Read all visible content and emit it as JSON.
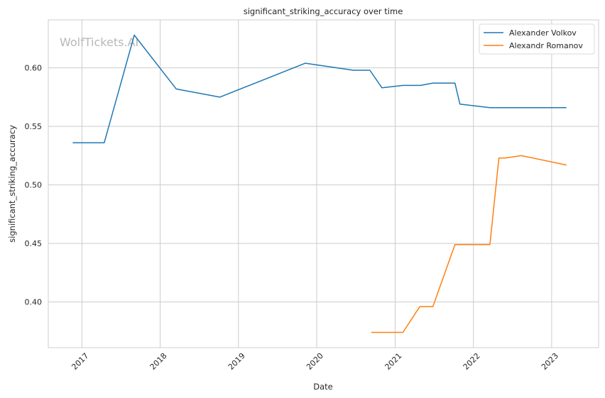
{
  "chart_data": {
    "type": "line",
    "title": "significant_striking_accuracy over time",
    "xlabel": "Date",
    "ylabel": "significant_striking_accuracy",
    "watermark": "WolfTickets.AI",
    "xlim": [
      "2016-07-28",
      "2023-08-08"
    ],
    "ylim": [
      0.361,
      0.641
    ],
    "x_ticks": [
      "2017",
      "2018",
      "2019",
      "2020",
      "2021",
      "2022",
      "2023"
    ],
    "y_ticks": [
      "0.40",
      "0.45",
      "0.50",
      "0.55",
      "0.60"
    ],
    "grid": true,
    "legend": "top-right",
    "series": [
      {
        "name": "Alexander Volkov",
        "color": "#1f77b4",
        "points": [
          [
            "2016-11-19",
            0.536
          ],
          [
            "2017-04-15",
            0.536
          ],
          [
            "2017-09-02",
            0.628
          ],
          [
            "2018-03-17",
            0.582
          ],
          [
            "2018-10-06",
            0.575
          ],
          [
            "2019-11-09",
            0.604
          ],
          [
            "2020-06-20",
            0.598
          ],
          [
            "2020-09-05",
            0.598
          ],
          [
            "2020-10-31",
            0.583
          ],
          [
            "2021-02-06",
            0.585
          ],
          [
            "2021-04-30",
            0.585
          ],
          [
            "2021-06-26",
            0.587
          ],
          [
            "2021-10-07",
            0.587
          ],
          [
            "2021-10-30",
            0.569
          ],
          [
            "2022-03-19",
            0.566
          ],
          [
            "2023-03-11",
            0.566
          ]
        ]
      },
      {
        "name": "Alexandr Romanov",
        "color": "#ff7f0e",
        "points": [
          [
            "2020-09-12",
            0.374
          ],
          [
            "2021-02-06",
            0.374
          ],
          [
            "2021-04-26",
            0.396
          ],
          [
            "2021-06-26",
            0.396
          ],
          [
            "2021-10-07",
            0.449
          ],
          [
            "2022-03-19",
            0.449
          ],
          [
            "2022-04-30",
            0.523
          ],
          [
            "2022-05-28",
            0.523
          ],
          [
            "2022-08-13",
            0.525
          ],
          [
            "2023-03-11",
            0.517
          ]
        ]
      }
    ]
  }
}
